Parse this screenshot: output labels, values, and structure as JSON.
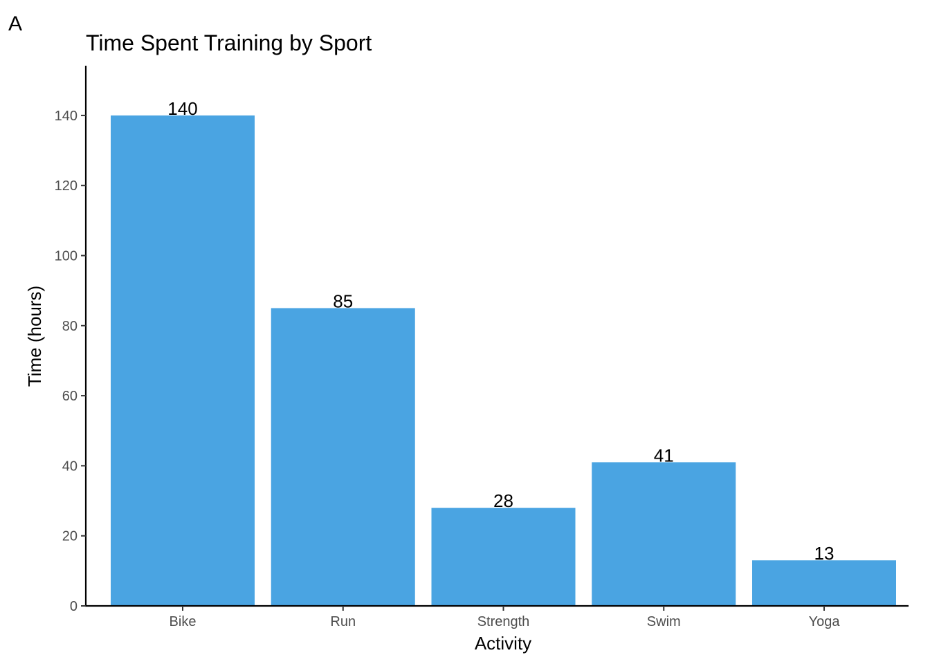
{
  "panel_tag": "A",
  "chart_data": {
    "type": "bar",
    "title": "Time Spent Training by Sport",
    "xlabel": "Activity",
    "ylabel": "Time (hours)",
    "categories": [
      "Bike",
      "Run",
      "Strength",
      "Swim",
      "Yoga"
    ],
    "values": [
      140,
      85,
      28,
      41,
      13
    ],
    "data_labels": [
      "140",
      "85",
      "28",
      "41",
      "13"
    ],
    "ylim": [
      0,
      152
    ],
    "yticks": [
      0,
      20,
      40,
      60,
      80,
      100,
      120,
      140
    ],
    "grid": false,
    "legend": "none",
    "bar_color": "#4AA4E2"
  }
}
